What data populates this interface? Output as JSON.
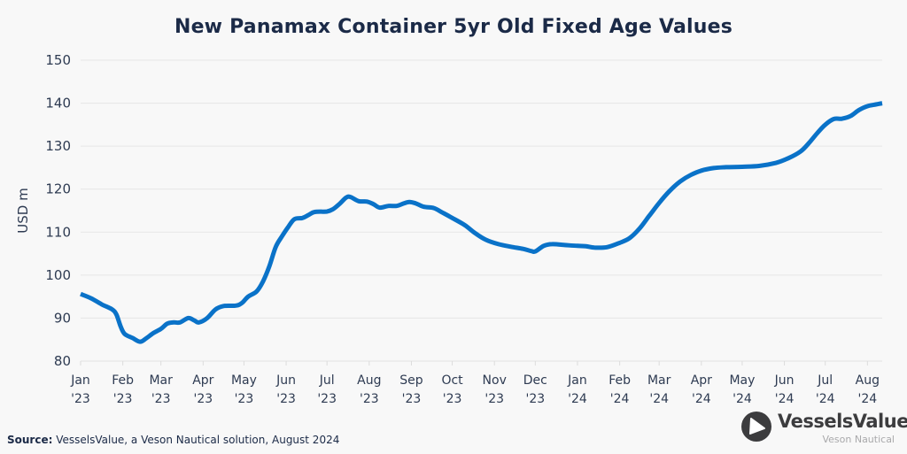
{
  "chart_data": {
    "type": "line",
    "title": "New Panamax Container 5yr Old Fixed Age Values",
    "xlabel": "",
    "ylabel": "USD m",
    "ylim": [
      80,
      150
    ],
    "yticks": [
      80,
      90,
      100,
      110,
      120,
      130,
      140,
      150
    ],
    "grid": "horizontal",
    "legend": "none",
    "x_ticks": [
      {
        "month": 0,
        "label": [
          "Jan",
          "'23"
        ]
      },
      {
        "month": 1,
        "label": [
          "Feb",
          "'23"
        ]
      },
      {
        "month": 2,
        "label": [
          "Mar",
          "'23"
        ]
      },
      {
        "month": 3,
        "label": [
          "Apr",
          "'23"
        ]
      },
      {
        "month": 4,
        "label": [
          "May",
          "'23"
        ]
      },
      {
        "month": 5,
        "label": [
          "Jun",
          "'23"
        ]
      },
      {
        "month": 6,
        "label": [
          "Jul",
          "'23"
        ]
      },
      {
        "month": 7,
        "label": [
          "Aug",
          "'23"
        ]
      },
      {
        "month": 8,
        "label": [
          "Sep",
          "'23"
        ]
      },
      {
        "month": 9,
        "label": [
          "Oct",
          "'23"
        ]
      },
      {
        "month": 10,
        "label": [
          "Nov",
          "'23"
        ]
      },
      {
        "month": 11,
        "label": [
          "Dec",
          "'23"
        ]
      },
      {
        "month": 12,
        "label": [
          "Jan",
          "'24"
        ]
      },
      {
        "month": 13,
        "label": [
          "Feb",
          "'24"
        ]
      },
      {
        "month": 14,
        "label": [
          "Mar",
          "'24"
        ]
      },
      {
        "month": 15,
        "label": [
          "Apr",
          "'24"
        ]
      },
      {
        "month": 16,
        "label": [
          "May",
          "'24"
        ]
      },
      {
        "month": 17,
        "label": [
          "Jun",
          "'24"
        ]
      },
      {
        "month": 18,
        "label": [
          "Jul",
          "'24"
        ]
      },
      {
        "month": 19,
        "label": [
          "Aug",
          "'24"
        ]
      }
    ],
    "xlim_months": [
      0,
      19.35
    ],
    "series": [
      {
        "name": "New Panamax Container 5yr Old",
        "color": "#0a72c8",
        "points": [
          [
            0.0,
            95.6
          ],
          [
            0.25,
            94.6
          ],
          [
            0.5,
            93.2
          ],
          [
            0.75,
            92.0
          ],
          [
            0.85,
            90.8
          ],
          [
            0.95,
            88.0
          ],
          [
            1.05,
            86.3
          ],
          [
            1.25,
            85.4
          ],
          [
            1.45,
            84.5
          ],
          [
            1.6,
            85.2
          ],
          [
            1.8,
            86.5
          ],
          [
            2.0,
            87.5
          ],
          [
            2.15,
            88.7
          ],
          [
            2.3,
            89.0
          ],
          [
            2.45,
            89.0
          ],
          [
            2.65,
            90.0
          ],
          [
            2.8,
            89.4
          ],
          [
            2.9,
            89.0
          ],
          [
            3.1,
            90.0
          ],
          [
            3.3,
            92.0
          ],
          [
            3.5,
            92.8
          ],
          [
            3.8,
            92.9
          ],
          [
            3.95,
            93.5
          ],
          [
            4.1,
            95.0
          ],
          [
            4.3,
            96.2
          ],
          [
            4.45,
            98.5
          ],
          [
            4.6,
            102.0
          ],
          [
            4.75,
            106.5
          ],
          [
            4.9,
            109.0
          ],
          [
            5.05,
            111.2
          ],
          [
            5.2,
            113.0
          ],
          [
            5.4,
            113.3
          ],
          [
            5.55,
            114.0
          ],
          [
            5.7,
            114.7
          ],
          [
            6.0,
            114.8
          ],
          [
            6.15,
            115.4
          ],
          [
            6.3,
            116.6
          ],
          [
            6.45,
            118.0
          ],
          [
            6.55,
            118.2
          ],
          [
            6.75,
            117.2
          ],
          [
            6.95,
            117.1
          ],
          [
            7.1,
            116.5
          ],
          [
            7.25,
            115.7
          ],
          [
            7.45,
            116.1
          ],
          [
            7.65,
            116.1
          ],
          [
            7.8,
            116.6
          ],
          [
            7.95,
            117.0
          ],
          [
            8.1,
            116.7
          ],
          [
            8.3,
            115.9
          ],
          [
            8.55,
            115.6
          ],
          [
            8.75,
            114.6
          ],
          [
            9.0,
            113.3
          ],
          [
            9.3,
            111.6
          ],
          [
            9.55,
            109.7
          ],
          [
            9.8,
            108.2
          ],
          [
            10.1,
            107.2
          ],
          [
            10.4,
            106.6
          ],
          [
            10.7,
            106.1
          ],
          [
            10.9,
            105.6
          ],
          [
            11.0,
            105.5
          ],
          [
            11.2,
            106.8
          ],
          [
            11.4,
            107.2
          ],
          [
            11.7,
            107.0
          ],
          [
            12.0,
            106.8
          ],
          [
            12.2,
            106.7
          ],
          [
            12.4,
            106.4
          ],
          [
            12.7,
            106.5
          ],
          [
            13.0,
            107.5
          ],
          [
            13.25,
            108.6
          ],
          [
            13.5,
            110.8
          ],
          [
            13.75,
            113.8
          ],
          [
            14.0,
            116.8
          ],
          [
            14.25,
            119.6
          ],
          [
            14.5,
            121.8
          ],
          [
            14.75,
            123.3
          ],
          [
            15.0,
            124.3
          ],
          [
            15.3,
            124.9
          ],
          [
            15.6,
            125.1
          ],
          [
            16.0,
            125.2
          ],
          [
            16.4,
            125.4
          ],
          [
            16.8,
            126.1
          ],
          [
            17.1,
            127.2
          ],
          [
            17.4,
            128.8
          ],
          [
            17.6,
            130.7
          ],
          [
            17.8,
            133.0
          ],
          [
            18.0,
            135.0
          ],
          [
            18.2,
            136.3
          ],
          [
            18.4,
            136.4
          ],
          [
            18.6,
            137.0
          ],
          [
            18.8,
            138.4
          ],
          [
            19.0,
            139.3
          ],
          [
            19.2,
            139.7
          ],
          [
            19.35,
            140.0
          ]
        ]
      }
    ]
  },
  "header": {
    "title": "New Panamax Container 5yr Old Fixed Age Values"
  },
  "footer": {
    "source_label": "Source:",
    "source_text": " VesselsValue, a Veson Nautical solution, August 2024",
    "logo_name": "VesselsValue",
    "logo_sub": "Veson Nautical"
  }
}
